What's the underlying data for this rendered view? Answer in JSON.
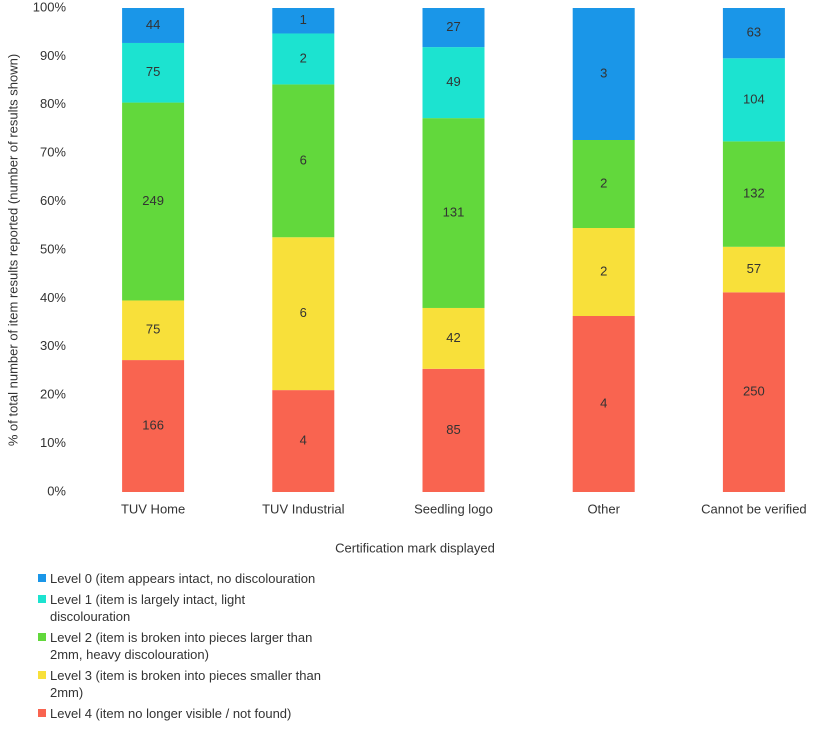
{
  "chart_data": {
    "type": "bar",
    "stacking": "percent",
    "x_label": "Certification mark displayed",
    "y_label": "% of total number of item results reported (number of results shown)",
    "categories": [
      "TUV Home",
      "TUV Industrial",
      "Seedling logo",
      "Other",
      "Cannot be verified"
    ],
    "series": [
      {
        "name": "Level 0 (item appears intact, no discolouration",
        "color": "#1a96e8",
        "values": [
          44,
          1,
          27,
          3,
          63
        ]
      },
      {
        "name": "Level 1 (item is largely intact, light discolouration",
        "color": "#1ce3d0",
        "values": [
          75,
          2,
          49,
          null,
          104
        ]
      },
      {
        "name": "Level 2 (item is broken into pieces larger than 2mm, heavy discolouration)",
        "color": "#62d83c",
        "values": [
          249,
          6,
          131,
          2,
          132
        ]
      },
      {
        "name": "Level 3 (item is broken into pieces smaller than 2mm)",
        "color": "#f8e03a",
        "values": [
          75,
          6,
          42,
          2,
          57
        ]
      },
      {
        "name": "Level 4 (item no longer visible / not found)",
        "color": "#f96450",
        "values": [
          166,
          4,
          85,
          4,
          250
        ]
      }
    ],
    "ylim": [
      0,
      100
    ],
    "yticks": [
      {
        "value": 0,
        "label": "0%"
      },
      {
        "value": 10,
        "label": "10%"
      },
      {
        "value": 20,
        "label": "20%"
      },
      {
        "value": 30,
        "label": "30%"
      },
      {
        "value": 40,
        "label": "40%"
      },
      {
        "value": 50,
        "label": "50%"
      },
      {
        "value": 60,
        "label": "60%"
      },
      {
        "value": 70,
        "label": "70%"
      },
      {
        "value": 80,
        "label": "80%"
      },
      {
        "value": 90,
        "label": "90%"
      },
      {
        "value": 100,
        "label": "100%"
      }
    ],
    "grid": false,
    "legend": "bottom-left"
  }
}
